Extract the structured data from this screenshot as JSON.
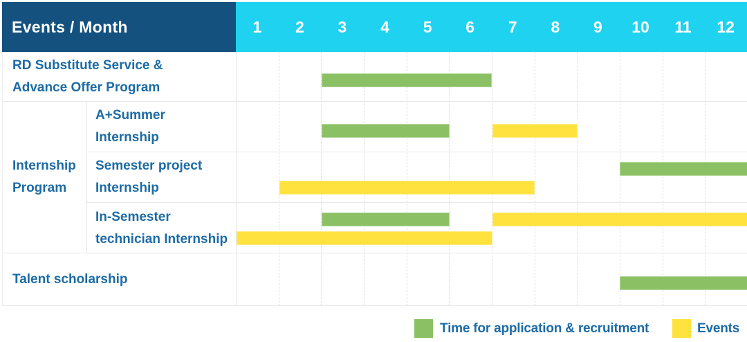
{
  "header": {
    "title": "Events / Month"
  },
  "colors": {
    "header_bg": "#15517F",
    "months_bg": "#1ED2F0",
    "label_text": "#1C6BA5",
    "application": "#8BC164",
    "event": "#FFE23E"
  },
  "chart_data": {
    "type": "gantt",
    "x_unit": "month",
    "x_ticks": [
      "1",
      "2",
      "3",
      "4",
      "5",
      "6",
      "7",
      "8",
      "9",
      "10",
      "11",
      "12"
    ],
    "x_range": [
      1,
      12
    ],
    "grid": "dashed-vertical",
    "legend_position": "bottom-right",
    "legend": [
      {
        "key": "application",
        "label": "Time for application & recruitment",
        "color": "#8BC164"
      },
      {
        "key": "event",
        "label": "Events",
        "color": "#FFE23E"
      }
    ],
    "sections": [
      {
        "kind": "single",
        "row": {
          "label": "RD Substitute Service & Advance Offer Program",
          "label_lines": [
            "RD Substitute Service &",
            "Advance Offer Program"
          ],
          "bars": [
            {
              "type": "application",
              "start": 3,
              "end": 6,
              "lane": "center"
            }
          ]
        }
      },
      {
        "kind": "group",
        "label": "Internship Program",
        "label_lines": [
          "Internship",
          "Program"
        ],
        "rows": [
          {
            "label": "A+Summer Internship",
            "label_lines": [
              "A+Summer",
              "Internship"
            ],
            "bars": [
              {
                "type": "application",
                "start": 3,
                "end": 5,
                "lane": "center"
              },
              {
                "type": "event",
                "start": 7,
                "end": 8,
                "lane": "center"
              }
            ]
          },
          {
            "label": "Semester project Internship",
            "label_lines": [
              "Semester project",
              "Internship"
            ],
            "bars": [
              {
                "type": "application",
                "start": 10,
                "end": 12,
                "lane": "top"
              },
              {
                "type": "event",
                "start": 2,
                "end": 7,
                "lane": "bottom"
              }
            ]
          },
          {
            "label": "In-Semester technician Internship",
            "label_lines": [
              "In-Semester",
              "technician Internship"
            ],
            "bars": [
              {
                "type": "application",
                "start": 3,
                "end": 5,
                "lane": "top"
              },
              {
                "type": "event",
                "start": 7,
                "end": 12,
                "lane": "top"
              },
              {
                "type": "event",
                "start": 1,
                "end": 6,
                "lane": "bottom"
              }
            ]
          }
        ]
      },
      {
        "kind": "single",
        "row": {
          "label": "Talent scholarship",
          "label_lines": [
            "Talent scholarship"
          ],
          "bars": [
            {
              "type": "application",
              "start": 10,
              "end": 12,
              "lane": "center"
            }
          ]
        }
      }
    ]
  }
}
